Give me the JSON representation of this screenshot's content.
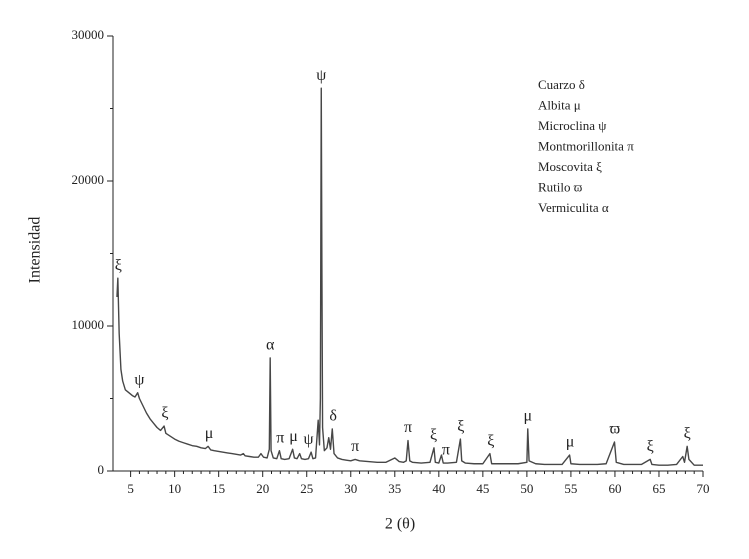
{
  "chart_data": {
    "type": "line",
    "x_label": "2 (θ)",
    "y_label": "Intensidad",
    "xlim": [
      3,
      70
    ],
    "xticks": [
      5,
      10,
      15,
      20,
      25,
      30,
      35,
      40,
      45,
      50,
      55,
      60,
      65,
      70
    ],
    "ylim": [
      0,
      30000
    ],
    "yticks": [
      0,
      10000,
      20000,
      30000
    ],
    "grid": false,
    "series": [
      {
        "color": "#474747",
        "x": [
          3.45,
          3.55,
          3.7,
          3.9,
          4.1,
          4.4,
          4.8,
          5.2,
          5.5,
          5.8,
          6.0,
          6.4,
          6.8,
          7.2,
          7.6,
          8.0,
          8.4,
          8.8,
          9.0,
          9.5,
          10,
          10.5,
          11,
          11.5,
          12,
          12.5,
          13,
          13.5,
          13.8,
          14.1,
          14.5,
          15,
          15.5,
          16,
          16.5,
          17,
          17.5,
          17.8,
          18,
          18.5,
          19,
          19.5,
          19.8,
          20.1,
          20.5,
          20.75,
          20.85,
          20.95,
          21.2,
          21.6,
          21.9,
          22.1,
          22.5,
          23,
          23.4,
          23.6,
          23.9,
          24.2,
          24.4,
          24.8,
          25.2,
          25.5,
          25.7,
          26.0,
          26.3,
          26.45,
          26.55,
          26.65,
          26.72,
          26.8,
          27.0,
          27.3,
          27.5,
          27.7,
          27.9,
          28.1,
          28.5,
          29,
          29.5,
          30,
          30.5,
          31,
          32,
          33,
          34,
          35,
          35.5,
          36,
          36.3,
          36.5,
          36.7,
          37,
          38,
          39,
          39.45,
          39.6,
          40,
          40.3,
          40.5,
          41,
          42,
          42.45,
          42.6,
          43,
          44,
          45,
          45.8,
          46,
          47,
          48,
          49,
          50,
          50.1,
          50.25,
          51,
          52,
          53,
          54,
          54.85,
          55,
          56,
          57,
          58,
          59,
          59.95,
          60.15,
          61,
          62,
          63,
          64,
          64.2,
          65,
          66,
          67,
          67.7,
          67.9,
          68.2,
          68.4,
          69,
          70
        ],
        "values": [
          12000,
          13300,
          9500,
          7000,
          6200,
          5600,
          5400,
          5200,
          5100,
          5400,
          5000,
          4500,
          4000,
          3600,
          3300,
          3000,
          2800,
          3100,
          2600,
          2400,
          2200,
          2050,
          1950,
          1850,
          1750,
          1700,
          1600,
          1550,
          1700,
          1450,
          1400,
          1350,
          1300,
          1250,
          1200,
          1150,
          1100,
          1200,
          1050,
          1000,
          950,
          950,
          1200,
          950,
          900,
          1500,
          7800,
          1400,
          900,
          850,
          1400,
          850,
          800,
          850,
          1500,
          900,
          850,
          1200,
          850,
          800,
          850,
          1300,
          850,
          900,
          3500,
          1800,
          5000,
          26400,
          14300,
          3000,
          1400,
          1600,
          2300,
          1500,
          2900,
          1200,
          900,
          800,
          750,
          700,
          800,
          700,
          650,
          600,
          600,
          900,
          650,
          600,
          700,
          2100,
          700,
          600,
          550,
          600,
          1600,
          600,
          550,
          1100,
          550,
          550,
          600,
          2200,
          700,
          550,
          500,
          500,
          1200,
          500,
          500,
          500,
          500,
          600,
          2900,
          700,
          500,
          450,
          450,
          450,
          1100,
          500,
          450,
          450,
          450,
          500,
          2000,
          600,
          450,
          450,
          450,
          800,
          450,
          400,
          400,
          450,
          1000,
          600,
          1700,
          800,
          400,
          400
        ]
      }
    ],
    "annotations": [
      {
        "text": "ξ",
        "x": 3.6
      },
      {
        "text": "ψ",
        "x": 6.0
      },
      {
        "text": "ξ",
        "x": 8.9
      },
      {
        "text": "μ",
        "x": 13.9
      },
      {
        "text": "α",
        "x": 20.85
      },
      {
        "text": "π",
        "x": 22.0
      },
      {
        "text": "μ",
        "x": 23.5
      },
      {
        "text": "ψ",
        "x": 25.2
      },
      {
        "text": "ψ",
        "x": 26.65
      },
      {
        "text": "δ",
        "x": 28.0
      },
      {
        "text": "π",
        "x": 30.5
      },
      {
        "text": "π",
        "x": 36.5
      },
      {
        "text": "ξ",
        "x": 39.4
      },
      {
        "text": "π",
        "x": 40.8
      },
      {
        "text": "ξ",
        "x": 42.5
      },
      {
        "text": "ξ",
        "x": 45.9
      },
      {
        "text": "μ",
        "x": 50.1
      },
      {
        "text": "μ",
        "x": 54.9
      },
      {
        "text": "ϖ",
        "x": 60.0
      },
      {
        "text": "ξ",
        "x": 64.0
      },
      {
        "text": "ξ",
        "x": 68.2
      }
    ],
    "legend": {
      "position": "upper right",
      "entries": [
        "Cuarzo δ",
        "Albita μ",
        "Microclina ψ",
        "Montmorillonita π",
        "Moscovita ξ",
        "Rutilo ϖ",
        "Vermiculita α"
      ]
    }
  }
}
